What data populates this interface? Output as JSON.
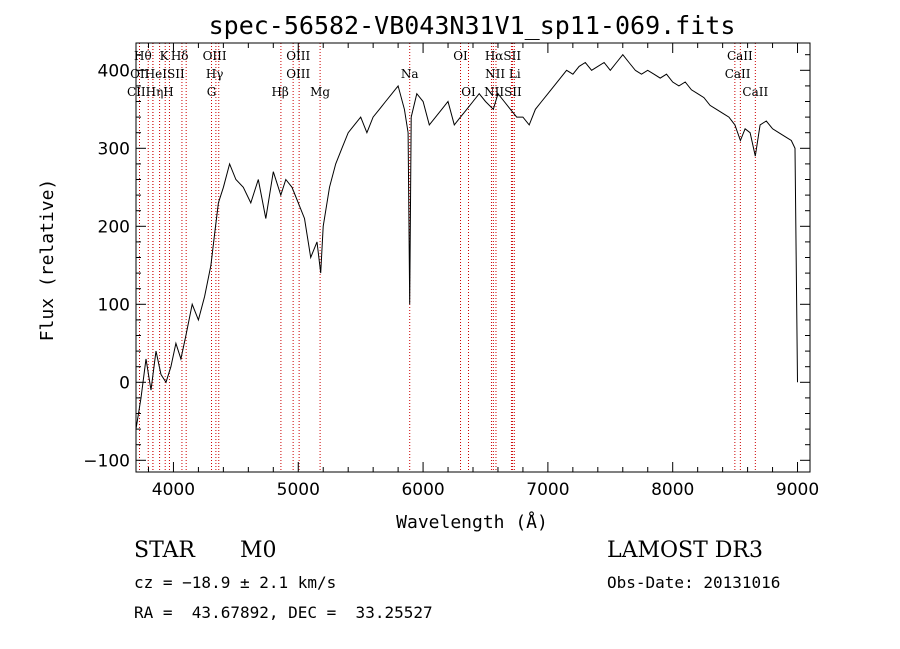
{
  "chart_data": {
    "type": "line",
    "title": "spec-56582-VB043N31V1_sp11-069.fits",
    "xlabel": "Wavelength (Å)",
    "ylabel": "Flux (relative)",
    "xlim": [
      3700,
      9100
    ],
    "ylim": [
      -115,
      435
    ],
    "xticks": [
      4000,
      5000,
      6000,
      7000,
      8000,
      9000
    ],
    "yticks": [
      -100,
      0,
      100,
      200,
      300,
      400
    ],
    "spectrum": {
      "name": "",
      "x": [
        3700,
        3740,
        3780,
        3820,
        3860,
        3900,
        3940,
        3980,
        4020,
        4060,
        4100,
        4150,
        4200,
        4250,
        4300,
        4330,
        4360,
        4400,
        4450,
        4500,
        4560,
        4620,
        4680,
        4740,
        4800,
        4860,
        4900,
        4950,
        5000,
        5050,
        5100,
        5150,
        5180,
        5200,
        5250,
        5300,
        5350,
        5400,
        5450,
        5500,
        5550,
        5600,
        5650,
        5700,
        5750,
        5800,
        5850,
        5880,
        5893,
        5905,
        5950,
        6000,
        6050,
        6100,
        6150,
        6200,
        6250,
        6300,
        6350,
        6400,
        6450,
        6500,
        6563,
        6600,
        6650,
        6700,
        6750,
        6800,
        6850,
        6900,
        6950,
        7000,
        7050,
        7100,
        7150,
        7200,
        7250,
        7300,
        7350,
        7400,
        7450,
        7500,
        7550,
        7600,
        7650,
        7700,
        7750,
        7800,
        7850,
        7900,
        7950,
        8000,
        8050,
        8100,
        8150,
        8200,
        8250,
        8300,
        8350,
        8400,
        8450,
        8498,
        8542,
        8580,
        8620,
        8662,
        8700,
        8750,
        8800,
        8850,
        8900,
        8950,
        8980,
        9000
      ],
      "y": [
        -60,
        -20,
        30,
        -10,
        40,
        10,
        0,
        20,
        50,
        30,
        60,
        100,
        80,
        110,
        150,
        190,
        230,
        250,
        280,
        260,
        250,
        230,
        260,
        210,
        270,
        240,
        260,
        250,
        230,
        210,
        160,
        180,
        140,
        200,
        250,
        280,
        300,
        320,
        330,
        340,
        320,
        340,
        350,
        360,
        370,
        380,
        350,
        320,
        100,
        340,
        370,
        360,
        330,
        340,
        350,
        360,
        330,
        340,
        350,
        360,
        370,
        360,
        350,
        370,
        360,
        350,
        340,
        340,
        330,
        350,
        360,
        370,
        380,
        390,
        400,
        395,
        405,
        410,
        400,
        405,
        410,
        400,
        410,
        420,
        410,
        400,
        395,
        400,
        395,
        390,
        395,
        385,
        380,
        385,
        375,
        370,
        365,
        355,
        350,
        345,
        340,
        330,
        310,
        325,
        320,
        290,
        330,
        335,
        325,
        320,
        315,
        310,
        300,
        0
      ]
    },
    "lines": [
      {
        "name": "Hθ",
        "wave": 3798
      },
      {
        "name": "CII",
        "wave": 3836
      },
      {
        "name": "OII",
        "wave": 3728
      },
      {
        "name": "K",
        "wave": 3934
      },
      {
        "name": "HeI",
        "wave": 3889
      },
      {
        "name": "Hη",
        "wave": 3835
      },
      {
        "name": "H",
        "wave": 3968
      },
      {
        "name": "SII",
        "wave": 4068
      },
      {
        "name": "Hδ",
        "wave": 4102
      },
      {
        "name": "OIII",
        "wave": 4363
      },
      {
        "name": "Hγ",
        "wave": 4340
      },
      {
        "name": "G",
        "wave": 4305
      },
      {
        "name": "Hβ",
        "wave": 4861
      },
      {
        "name": "OIII",
        "wave": 4959
      },
      {
        "name": "OIII",
        "wave": 5007
      },
      {
        "name": "Mg",
        "wave": 5175
      },
      {
        "name": "Na",
        "wave": 5893
      },
      {
        "name": "OI",
        "wave": 6300
      },
      {
        "name": "OI",
        "wave": 6364
      },
      {
        "name": "Hα",
        "wave": 6563
      },
      {
        "name": "NII",
        "wave": 6548
      },
      {
        "name": "NII",
        "wave": 6584
      },
      {
        "name": "SII",
        "wave": 6717
      },
      {
        "name": "Li",
        "wave": 6708
      },
      {
        "name": "SII",
        "wave": 6731
      },
      {
        "name": "CaII",
        "wave": 8498
      },
      {
        "name": "CaII",
        "wave": 8542
      },
      {
        "name": "CaII",
        "wave": 8662
      }
    ],
    "line_labels": [
      {
        "text": "Hθ",
        "wave": 3755,
        "row": 0
      },
      {
        "text": "K",
        "wave": 3925,
        "row": 0
      },
      {
        "text": "Hδ",
        "wave": 4050,
        "row": 0
      },
      {
        "text": "OIII",
        "wave": 4330,
        "row": 0
      },
      {
        "text": "OIII",
        "wave": 5000,
        "row": 0
      },
      {
        "text": "OI",
        "wave": 6300,
        "row": 0
      },
      {
        "text": "HαSII",
        "wave": 6640,
        "row": 0
      },
      {
        "text": "CaII",
        "wave": 8538,
        "row": 0
      },
      {
        "text": "OII",
        "wave": 3730,
        "row": 1
      },
      {
        "text": "HeISII",
        "wave": 3930,
        "row": 1
      },
      {
        "text": "Hγ",
        "wave": 4330,
        "row": 1
      },
      {
        "text": "OIII",
        "wave": 5000,
        "row": 1
      },
      {
        "text": "Na",
        "wave": 5893,
        "row": 1
      },
      {
        "text": "NII Li",
        "wave": 6640,
        "row": 1
      },
      {
        "text": "CaII",
        "wave": 8520,
        "row": 1
      },
      {
        "text": "CIIHηH",
        "wave": 3815,
        "row": 2
      },
      {
        "text": "G",
        "wave": 4305,
        "row": 2
      },
      {
        "text": "Hβ",
        "wave": 4855,
        "row": 2
      },
      {
        "text": "Mg",
        "wave": 5175,
        "row": 2
      },
      {
        "text": "OI",
        "wave": 6364,
        "row": 2
      },
      {
        "text": "NIISII",
        "wave": 6640,
        "row": 2
      },
      {
        "text": "CaII",
        "wave": 8662,
        "row": 2
      }
    ],
    "grid": false,
    "colors": {
      "spectrum": "#000000",
      "lines": "#cc0000",
      "axes": "#000000"
    }
  },
  "info": {
    "object_class": "STAR",
    "subclass": "M0",
    "survey": "LAMOST DR3",
    "cz": "cz = −18.9 ± 2.1 km/s",
    "obs_date": "Obs-Date: 20131016",
    "radec": "RA =  43.67892, DEC =  33.25527"
  }
}
